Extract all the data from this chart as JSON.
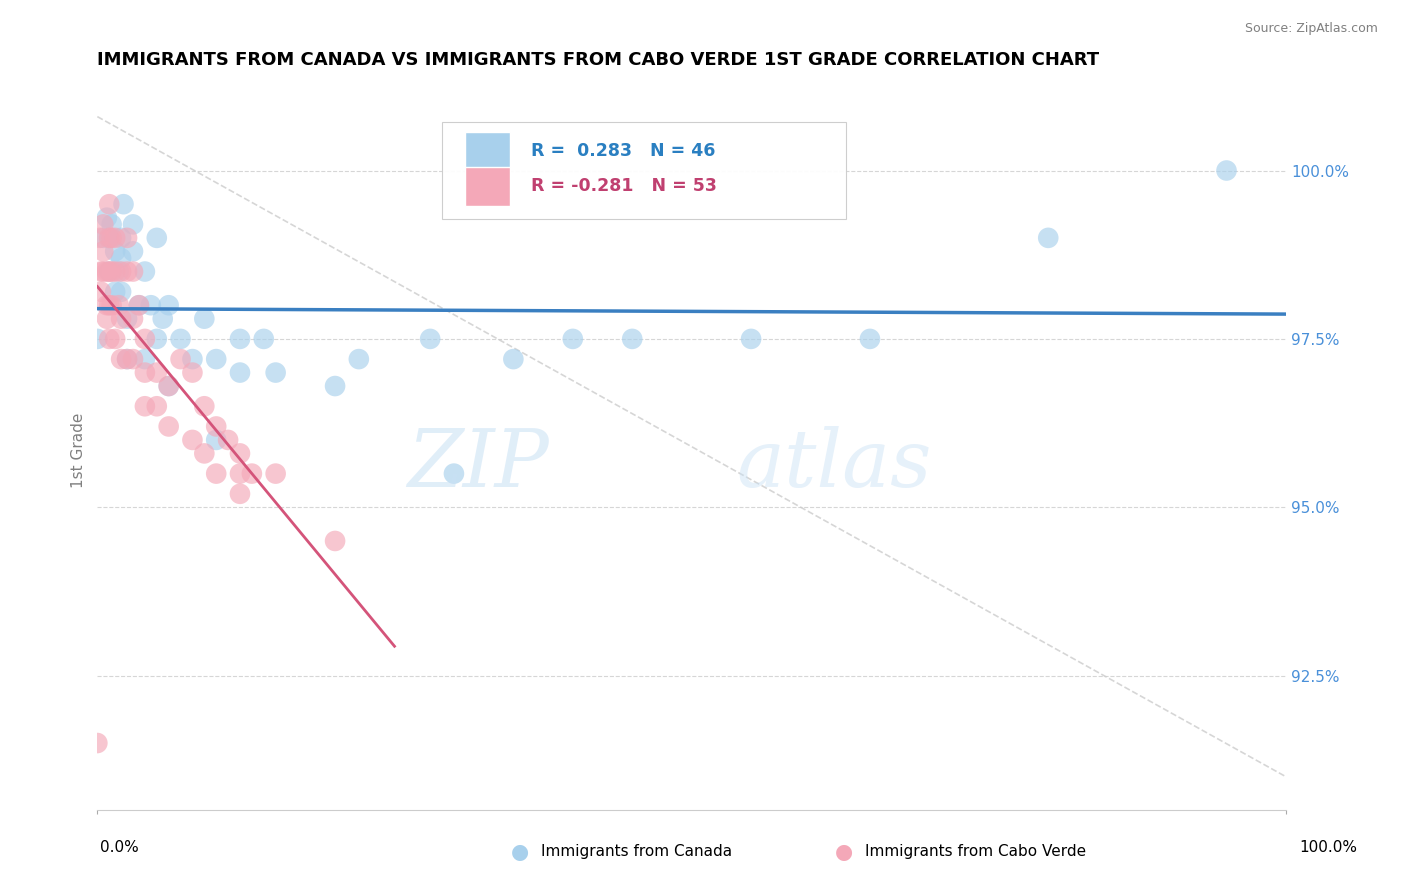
{
  "title": "IMMIGRANTS FROM CANADA VS IMMIGRANTS FROM CABO VERDE 1ST GRADE CORRELATION CHART",
  "source": "Source: ZipAtlas.com",
  "ylabel": "1st Grade",
  "R_canada": 0.283,
  "N_canada": 46,
  "R_caboverde": -0.281,
  "N_caboverde": 53,
  "canada_color": "#A8D0EC",
  "caboverde_color": "#F4A8B8",
  "canada_line_color": "#3A7FC1",
  "caboverde_line_color": "#D4547A",
  "legend_canada": "Immigrants from Canada",
  "legend_caboverde": "Immigrants from Cabo Verde",
  "xlim": [
    0.0,
    100.0
  ],
  "ylim": [
    90.5,
    101.2
  ],
  "y_tick_positions": [
    92.5,
    95.0,
    97.5,
    100.0
  ],
  "y_tick_labels": [
    "92.5%",
    "95.0%",
    "97.5%",
    "100.0%"
  ],
  "canada_x": [
    0.0,
    0.5,
    0.8,
    1.0,
    1.0,
    1.2,
    1.5,
    1.5,
    1.8,
    2.0,
    2.0,
    2.0,
    2.2,
    2.5,
    2.5,
    3.0,
    3.0,
    3.5,
    4.0,
    4.0,
    4.5,
    5.0,
    5.0,
    5.5,
    6.0,
    6.0,
    7.0,
    8.0,
    9.0,
    10.0,
    10.0,
    12.0,
    12.0,
    14.0,
    15.0,
    20.0,
    22.0,
    28.0,
    30.0,
    35.0,
    40.0,
    45.0,
    55.0,
    65.0,
    80.0,
    95.0
  ],
  "canada_y": [
    97.5,
    99.0,
    99.3,
    99.0,
    98.5,
    99.2,
    98.8,
    98.2,
    98.5,
    99.0,
    98.7,
    98.2,
    99.5,
    97.8,
    97.2,
    99.2,
    98.8,
    98.0,
    98.5,
    97.2,
    98.0,
    99.0,
    97.5,
    97.8,
    98.0,
    96.8,
    97.5,
    97.2,
    97.8,
    97.2,
    96.0,
    97.5,
    97.0,
    97.5,
    97.0,
    96.8,
    97.2,
    97.5,
    95.5,
    97.2,
    97.5,
    97.5,
    97.5,
    97.5,
    99.0,
    100.0
  ],
  "caboverde_x": [
    0.0,
    0.2,
    0.3,
    0.3,
    0.5,
    0.5,
    0.5,
    0.8,
    0.8,
    0.8,
    1.0,
    1.0,
    1.0,
    1.0,
    1.0,
    1.2,
    1.2,
    1.2,
    1.5,
    1.5,
    1.5,
    1.8,
    2.0,
    2.0,
    2.0,
    2.5,
    2.5,
    2.5,
    3.0,
    3.0,
    3.0,
    3.5,
    4.0,
    4.0,
    4.0,
    5.0,
    5.0,
    6.0,
    6.0,
    7.0,
    8.0,
    8.0,
    9.0,
    9.0,
    10.0,
    10.0,
    11.0,
    12.0,
    12.0,
    12.0,
    13.0,
    15.0,
    20.0
  ],
  "caboverde_y": [
    91.5,
    99.0,
    98.5,
    98.2,
    99.2,
    98.8,
    98.5,
    98.5,
    98.0,
    97.8,
    99.5,
    99.0,
    98.5,
    98.0,
    97.5,
    99.0,
    98.5,
    98.0,
    99.0,
    98.5,
    97.5,
    98.0,
    98.5,
    97.8,
    97.2,
    99.0,
    98.5,
    97.2,
    98.5,
    97.8,
    97.2,
    98.0,
    97.5,
    97.0,
    96.5,
    97.0,
    96.5,
    96.8,
    96.2,
    97.2,
    97.0,
    96.0,
    96.5,
    95.8,
    96.2,
    95.5,
    96.0,
    95.8,
    95.5,
    95.2,
    95.5,
    95.5,
    94.5
  ]
}
